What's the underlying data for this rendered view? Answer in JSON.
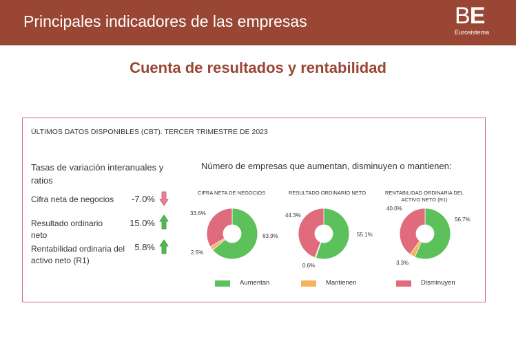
{
  "header": {
    "title": "Principales indicadores de las empresas"
  },
  "logo": {
    "mark_b": "B",
    "mark_e": "E",
    "subtitle": "Eurosistema"
  },
  "page_subtitle": "Cuenta de resultados y rentabilidad",
  "panel": {
    "heading": "ÚLTIMOS DATOS DISPONIBLES (CBT). TERCER TRIMESTRE DE 2023",
    "left_title": "Tasas de variación interanuales y ratios",
    "indicators": [
      {
        "label": "Cifra neta de negocios",
        "value": "-7.0%",
        "direction": "down"
      },
      {
        "label": "Resultado ordinario neto",
        "value": "15.0%",
        "direction": "up"
      },
      {
        "label": "Rentabilidad ordinaria del activo neto (R1)",
        "value": "5.8%",
        "direction": "up"
      }
    ],
    "right_title": "Número de empresas que aumentan, disminuyen o mantienen:"
  },
  "colors": {
    "aumentan": "#5cc15a",
    "mantienen": "#f7b25e",
    "disminuyen": "#e06b7d",
    "down_arrow": "#e98392",
    "up_arrow": "#54b94e"
  },
  "chart_data": [
    {
      "type": "pie",
      "title": "CIFRA NETA DE NEGOCIOS",
      "categories": [
        "Aumentan",
        "Mantienen",
        "Disminuyen"
      ],
      "values": [
        63.9,
        2.5,
        33.6
      ],
      "labels": [
        "63.9%",
        "2.5%",
        "33.6%"
      ]
    },
    {
      "type": "pie",
      "title": "RESULTADO ORDINARIO NETO",
      "categories": [
        "Aumentan",
        "Mantienen",
        "Disminuyen"
      ],
      "values": [
        55.1,
        0.6,
        44.3
      ],
      "labels": [
        "55.1%",
        "0.6%",
        "44.3%"
      ]
    },
    {
      "type": "pie",
      "title": "RENTABILIDAD ORDINARIA DEL ACTIVO NETO (R1)",
      "categories": [
        "Aumentan",
        "Mantienen",
        "Disminuyen"
      ],
      "values": [
        56.7,
        3.3,
        40.0
      ],
      "labels": [
        "56.7%",
        "3.3%",
        "40.0%"
      ]
    }
  ],
  "legend": [
    {
      "label": "Aumentan",
      "color": "#5cc15a"
    },
    {
      "label": "Mantienen",
      "color": "#f7b25e"
    },
    {
      "label": "Disminuyen",
      "color": "#e06b7d"
    }
  ]
}
